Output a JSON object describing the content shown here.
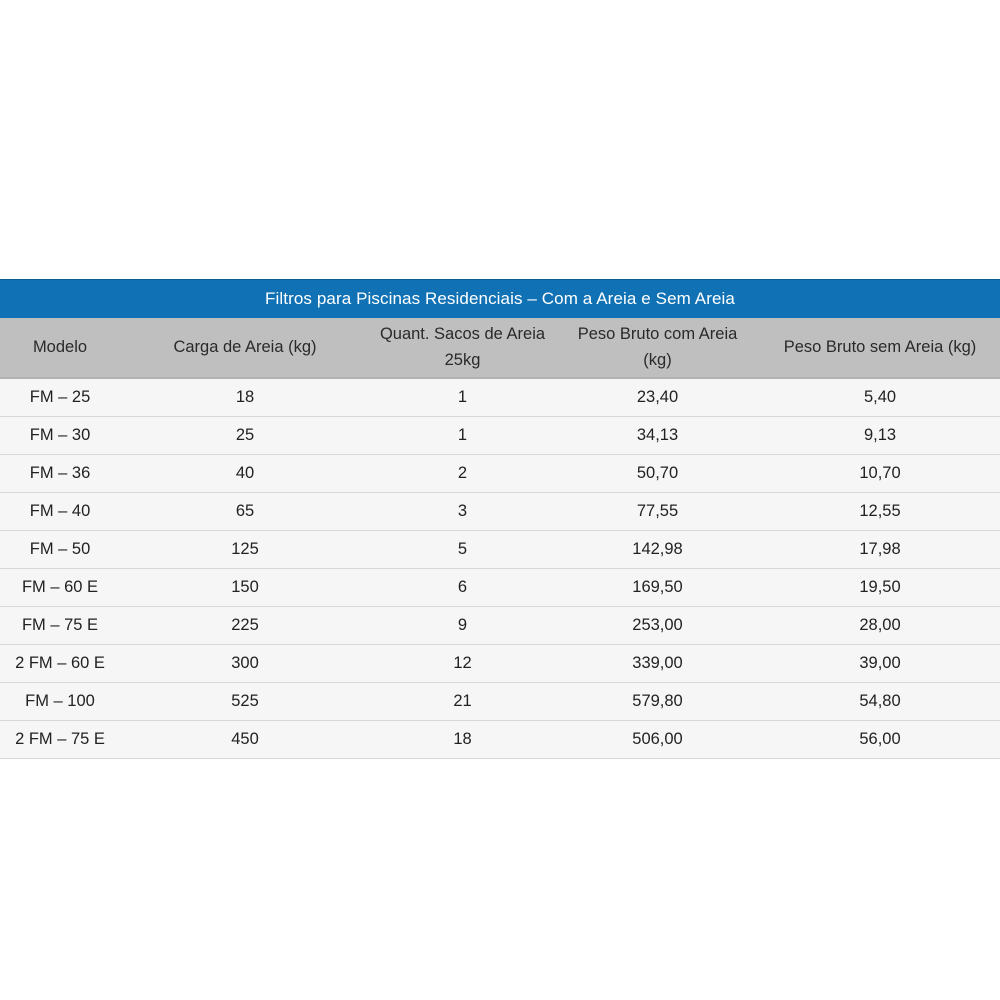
{
  "colors": {
    "title_bar": "#1072b5",
    "title_text": "#ffffff",
    "header_bg": "#bfbfbf",
    "row_bg": "#f7f6f6",
    "divider": "#d8d8d8",
    "body_text": "#222222"
  },
  "table": {
    "title": "Filtros para Piscinas Residenciais – Com a Areia e Sem Areia",
    "columns": [
      {
        "line1": "Modelo",
        "line2": ""
      },
      {
        "line1": "Carga de Areia (kg)",
        "line2": ""
      },
      {
        "line1": "Quant. Sacos de Areia",
        "line2": "25kg"
      },
      {
        "line1": "Peso Bruto com Areia",
        "line2": "(kg)"
      },
      {
        "line1": "Peso Bruto sem Areia (kg)",
        "line2": ""
      }
    ],
    "rows": [
      [
        "FM – 25",
        "18",
        "1",
        "23,40",
        "5,40"
      ],
      [
        "FM – 30",
        "25",
        "1",
        "34,13",
        "9,13"
      ],
      [
        "FM – 36",
        "40",
        "2",
        "50,70",
        "10,70"
      ],
      [
        "FM – 40",
        "65",
        "3",
        "77,55",
        "12,55"
      ],
      [
        "FM – 50",
        "125",
        "5",
        "142,98",
        "17,98"
      ],
      [
        "FM – 60 E",
        "150",
        "6",
        "169,50",
        "19,50"
      ],
      [
        "FM – 75 E",
        "225",
        "9",
        "253,00",
        "28,00"
      ],
      [
        "2 FM – 60 E",
        "300",
        "12",
        "339,00",
        "39,00"
      ],
      [
        "FM – 100",
        "525",
        "21",
        "579,80",
        "54,80"
      ],
      [
        "2 FM – 75 E",
        "450",
        "18",
        "506,00",
        "56,00"
      ]
    ]
  },
  "chart_data": {
    "type": "table",
    "title": "Filtros para Piscinas Residenciais – Com a Areia e Sem Areia",
    "columns": [
      "Modelo",
      "Carga de Areia (kg)",
      "Quant. Sacos de Areia 25kg",
      "Peso Bruto com Areia (kg)",
      "Peso Bruto sem Areia (kg)"
    ],
    "rows": [
      [
        "FM – 25",
        "18",
        "1",
        "23,40",
        "5,40"
      ],
      [
        "FM – 30",
        "25",
        "1",
        "34,13",
        "9,13"
      ],
      [
        "FM – 36",
        "40",
        "2",
        "50,70",
        "10,70"
      ],
      [
        "FM – 40",
        "65",
        "3",
        "77,55",
        "12,55"
      ],
      [
        "FM – 50",
        "125",
        "5",
        "142,98",
        "17,98"
      ],
      [
        "FM – 60 E",
        "150",
        "6",
        "169,50",
        "19,50"
      ],
      [
        "FM – 75 E",
        "225",
        "9",
        "253,00",
        "28,00"
      ],
      [
        "2 FM – 60 E",
        "300",
        "12",
        "339,00",
        "39,00"
      ],
      [
        "FM – 100",
        "525",
        "21",
        "579,80",
        "54,80"
      ],
      [
        "2 FM – 75 E",
        "450",
        "18",
        "506,00",
        "56,00"
      ]
    ]
  }
}
